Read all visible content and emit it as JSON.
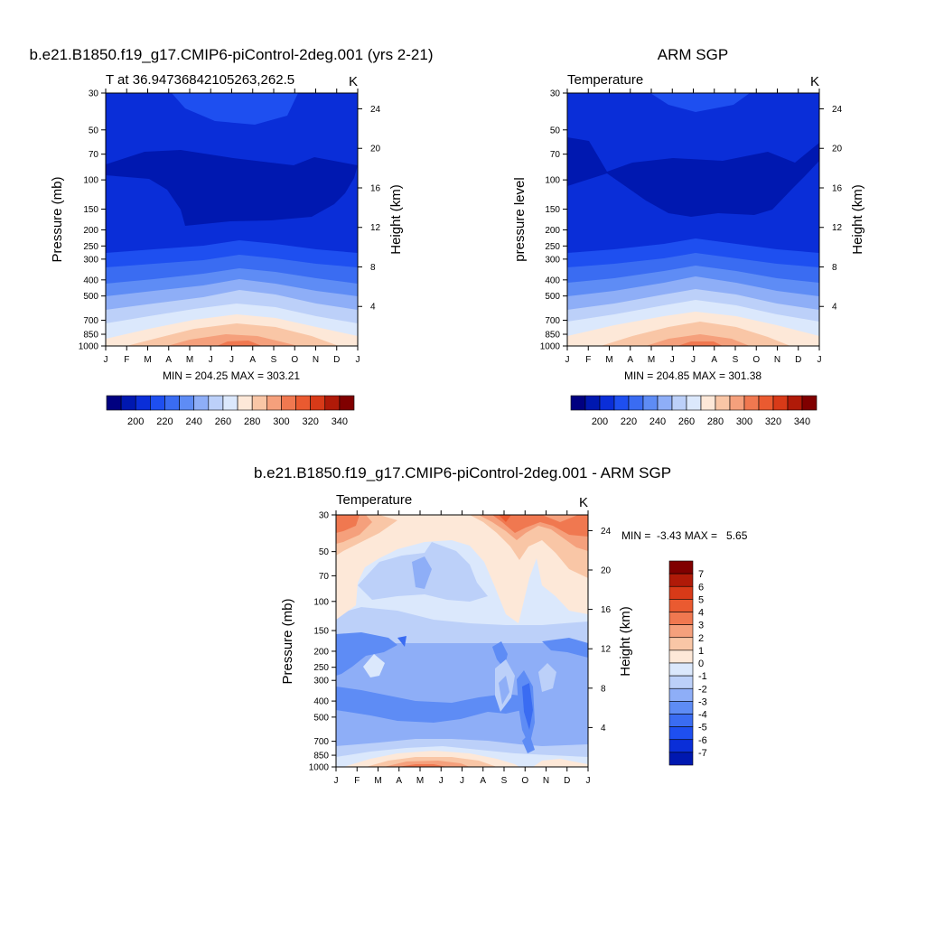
{
  "colors": {
    "cool": [
      "#000080",
      "#0018b0",
      "#0a2ed8",
      "#1e4ff0",
      "#3a6cf2",
      "#5e8cf5",
      "#8eaef7",
      "#bcd0f9",
      "#dbe8fc"
    ],
    "warm": [
      "#fde8d8",
      "#f9c6a6",
      "#f5a07c",
      "#f07850",
      "#ea5a30",
      "#d83a18",
      "#b01a08",
      "#800000"
    ],
    "white": "#ffffff",
    "frame": "#000000"
  },
  "chart_data": [
    {
      "id": "model",
      "type": "contour",
      "suptitle": "b.e21.B1850.f19_g17.CMIP6-piControl-2deg.001 (yrs 2-21)",
      "left_title": "T at 36.94736842105263,262.5",
      "right_title": "K",
      "ylabel": "Pressure (mb)",
      "right_ylabel": "Height (km)",
      "x_ticks": [
        "J",
        "F",
        "M",
        "A",
        "M",
        "J",
        "J",
        "A",
        "S",
        "O",
        "N",
        "D",
        "J"
      ],
      "y_ticks": [
        "30",
        "50",
        "70",
        "100",
        "150",
        "200",
        "250",
        "300",
        "400",
        "500",
        "700",
        "850",
        "1000"
      ],
      "y_tick_values": [
        30,
        50,
        70,
        100,
        150,
        200,
        250,
        300,
        400,
        500,
        700,
        850,
        1000
      ],
      "right_ticks": [
        "24",
        "20",
        "16",
        "12",
        "8",
        "4"
      ],
      "right_tick_values": [
        24,
        20,
        16,
        12,
        8,
        4
      ],
      "ylim": [
        30,
        1000
      ],
      "levels_K": [
        {
          "p": 30,
          "T_jan": 208,
          "T_jul": 220
        },
        {
          "p": 100,
          "T_jan": 206,
          "T_jul": 204
        },
        {
          "p": 300,
          "T_jan": 226,
          "T_jul": 234
        },
        {
          "p": 500,
          "T_jan": 252,
          "T_jul": 262
        },
        {
          "p": 700,
          "T_jan": 266,
          "T_jul": 280
        },
        {
          "p": 1000,
          "T_jan": 280,
          "T_jul": 303
        }
      ],
      "stats": "MIN = 204.25 MAX = 303.21",
      "colorbar_labels": [
        "200",
        "220",
        "240",
        "260",
        "280",
        "300",
        "320",
        "340"
      ],
      "min": 204.25,
      "max": 303.21
    },
    {
      "id": "obs",
      "type": "contour",
      "suptitle": "ARM SGP",
      "left_title": "Temperature",
      "right_title": "K",
      "ylabel": "pressure level",
      "right_ylabel": "Height (km)",
      "x_ticks": [
        "J",
        "F",
        "M",
        "A",
        "M",
        "J",
        "J",
        "A",
        "S",
        "O",
        "N",
        "D",
        "J"
      ],
      "y_ticks": [
        "30",
        "50",
        "70",
        "100",
        "150",
        "200",
        "250",
        "300",
        "400",
        "500",
        "700",
        "850",
        "1000"
      ],
      "y_tick_values": [
        30,
        50,
        70,
        100,
        150,
        200,
        250,
        300,
        400,
        500,
        700,
        850,
        1000
      ],
      "right_ticks": [
        "24",
        "20",
        "16",
        "12",
        "8",
        "4"
      ],
      "right_tick_values": [
        24,
        20,
        16,
        12,
        8,
        4
      ],
      "ylim": [
        30,
        1000
      ],
      "stats": "MIN = 204.85 MAX = 301.38",
      "colorbar_labels": [
        "200",
        "220",
        "240",
        "260",
        "280",
        "300",
        "320",
        "340"
      ],
      "min": 204.85,
      "max": 301.38
    },
    {
      "id": "diff",
      "type": "contour",
      "suptitle": "b.e21.B1850.f19_g17.CMIP6-piControl-2deg.001 - ARM SGP",
      "left_title": "Temperature",
      "right_title": "K",
      "ylabel": "Pressure (mb)",
      "right_ylabel": "Height (km)",
      "x_ticks": [
        "J",
        "F",
        "M",
        "A",
        "M",
        "J",
        "J",
        "A",
        "S",
        "O",
        "N",
        "D",
        "J"
      ],
      "y_ticks": [
        "30",
        "50",
        "70",
        "100",
        "150",
        "200",
        "250",
        "300",
        "400",
        "500",
        "700",
        "850",
        "1000"
      ],
      "y_tick_values": [
        30,
        50,
        70,
        100,
        150,
        200,
        250,
        300,
        400,
        500,
        700,
        850,
        1000
      ],
      "right_ticks": [
        "24",
        "20",
        "16",
        "12",
        "8",
        "4"
      ],
      "right_tick_values": [
        24,
        20,
        16,
        12,
        8,
        4
      ],
      "ylim": [
        30,
        1000
      ],
      "stats": "MIN =  -3.43 MAX =   5.65",
      "colorbar_labels": [
        "7",
        "6",
        "5",
        "4",
        "3",
        "2",
        "1",
        "0",
        "-1",
        "-2",
        "-3",
        "-4",
        "-5",
        "-6",
        "-7"
      ],
      "min": -3.43,
      "max": 5.65
    }
  ]
}
